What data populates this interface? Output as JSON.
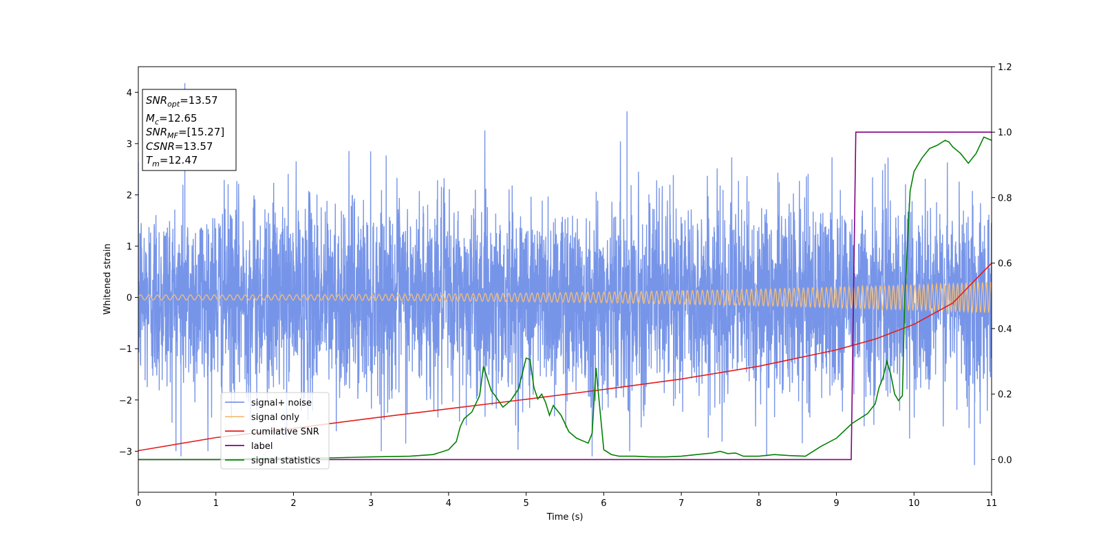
{
  "chart_data": {
    "type": "line",
    "title": "",
    "xlabel": "Time (s)",
    "ylabel": "Whitened strain",
    "xlim": [
      0,
      11
    ],
    "ylim": [
      -3.8,
      4.5
    ],
    "y2lim": [
      -0.1,
      1.2
    ],
    "x_ticks": [
      "0",
      "1",
      "2",
      "3",
      "4",
      "5",
      "6",
      "7",
      "8",
      "9",
      "10",
      "11"
    ],
    "y_ticks": [
      "−3",
      "−2",
      "−1",
      "0",
      "1",
      "2",
      "3",
      "4"
    ],
    "y2_ticks": [
      "0.0",
      "0.2",
      "0.4",
      "0.6",
      "0.8",
      "1.0",
      "1.2"
    ],
    "legend_position": "lower-left",
    "info_box": {
      "snr_opt": {
        "symbol": "SNR",
        "sub": "opt",
        "value": "=13.57"
      },
      "mc": {
        "symbol": "M",
        "sub": "c",
        "value": "=12.65"
      },
      "snr_mf": {
        "symbol": "SNR",
        "sub": "MF",
        "value": "=[15.27]"
      },
      "csnr": {
        "symbol": "CSNR",
        "sub": "",
        "value": "=13.57"
      },
      "tm": {
        "symbol": "T",
        "sub": "m",
        "value": "=12.47"
      }
    },
    "series": [
      {
        "name": "signal+ noise",
        "color": "#7795e8",
        "axis": "left",
        "kind": "noise",
        "std": 0.95,
        "spikes": [
          [
            0.6,
            4.18
          ],
          [
            6.3,
            3.63
          ],
          [
            10.78,
            -3.27
          ],
          [
            0.55,
            -3.1
          ],
          [
            5.85,
            -3.1
          ],
          [
            8.1,
            -3.1
          ]
        ]
      },
      {
        "name": "signal only",
        "color": "#f5bf7a",
        "axis": "left",
        "kind": "chirp",
        "amplitude_start": 0.05,
        "amplitude_end": 0.3
      },
      {
        "name": "cumilative SNR",
        "color": "#e31a1c",
        "axis": "right",
        "x": [
          0,
          1,
          2,
          3,
          4,
          5,
          6,
          7,
          8,
          9,
          9.5,
          10,
          10.5,
          11
        ],
        "values": [
          0.027,
          0.067,
          0.095,
          0.126,
          0.155,
          0.184,
          0.214,
          0.246,
          0.285,
          0.335,
          0.368,
          0.413,
          0.478,
          0.6
        ]
      },
      {
        "name": "label",
        "color": "#800080",
        "axis": "right",
        "x": [
          0,
          9.19,
          9.25,
          11
        ],
        "values": [
          0.0,
          0.0,
          1.0,
          1.0
        ]
      },
      {
        "name": "signal statistics",
        "color": "#008000",
        "axis": "right",
        "x": [
          0,
          1,
          2,
          2.5,
          3,
          3.5,
          3.8,
          4.0,
          4.1,
          4.15,
          4.2,
          4.3,
          4.4,
          4.45,
          4.55,
          4.6,
          4.7,
          4.8,
          4.9,
          5.0,
          5.05,
          5.1,
          5.15,
          5.2,
          5.25,
          5.3,
          5.35,
          5.45,
          5.55,
          5.65,
          5.75,
          5.8,
          5.85,
          5.9,
          6.0,
          6.1,
          6.2,
          6.4,
          6.6,
          6.8,
          7.0,
          7.2,
          7.4,
          7.5,
          7.6,
          7.7,
          7.8,
          7.9,
          8.0,
          8.2,
          8.4,
          8.6,
          8.8,
          9.0,
          9.2,
          9.4,
          9.5,
          9.55,
          9.6,
          9.65,
          9.7,
          9.75,
          9.8,
          9.85,
          9.88,
          9.92,
          9.95,
          10.0,
          10.1,
          10.2,
          10.3,
          10.4,
          10.45,
          10.5,
          10.6,
          10.7,
          10.8,
          10.9,
          11.0
        ],
        "values": [
          0.0,
          0.0,
          0.005,
          0.005,
          0.008,
          0.01,
          0.015,
          0.03,
          0.055,
          0.1,
          0.125,
          0.145,
          0.195,
          0.285,
          0.21,
          0.195,
          0.16,
          0.18,
          0.215,
          0.31,
          0.305,
          0.22,
          0.185,
          0.2,
          0.175,
          0.135,
          0.165,
          0.135,
          0.085,
          0.065,
          0.055,
          0.05,
          0.08,
          0.28,
          0.03,
          0.015,
          0.01,
          0.01,
          0.008,
          0.008,
          0.01,
          0.015,
          0.02,
          0.025,
          0.018,
          0.02,
          0.01,
          0.01,
          0.01,
          0.015,
          0.012,
          0.01,
          0.04,
          0.065,
          0.11,
          0.14,
          0.17,
          0.22,
          0.25,
          0.3,
          0.26,
          0.2,
          0.18,
          0.195,
          0.48,
          0.68,
          0.82,
          0.88,
          0.92,
          0.95,
          0.96,
          0.975,
          0.97,
          0.955,
          0.935,
          0.905,
          0.935,
          0.985,
          0.975
        ]
      }
    ]
  }
}
